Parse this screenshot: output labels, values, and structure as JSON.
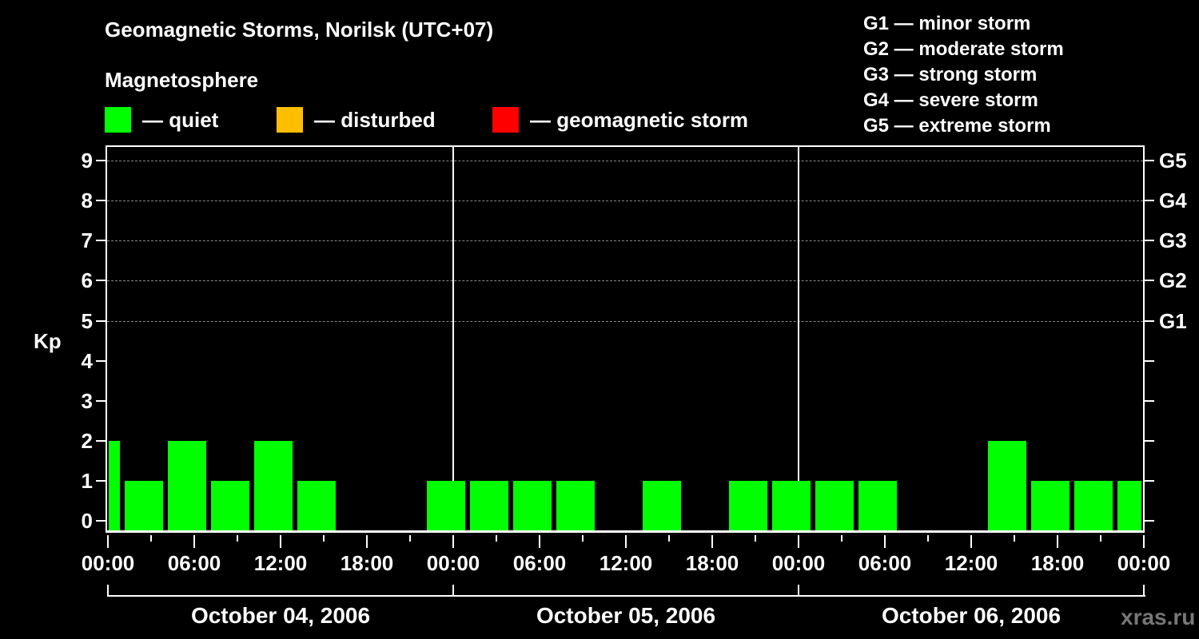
{
  "chart_data": {
    "type": "bar",
    "title": "Geomagnetic Storms, Norilsk (UTC+07)",
    "subtitle": "Magnetosphere",
    "xlabel": "",
    "ylabel": "Kp",
    "ylim": [
      0,
      9
    ],
    "yticks": [
      "0",
      "1",
      "2",
      "3",
      "4",
      "5",
      "6",
      "7",
      "8",
      "9"
    ],
    "right_ticks": [
      {
        "kp": 5,
        "label": "G1"
      },
      {
        "kp": 6,
        "label": "G2"
      },
      {
        "kp": 7,
        "label": "G3"
      },
      {
        "kp": 8,
        "label": "G4"
      },
      {
        "kp": 9,
        "label": "G5"
      }
    ],
    "grid": "dashed horizontal at Kp 5-9",
    "xtick_labels": [
      "00:00",
      "06:00",
      "12:00",
      "18:00",
      "00:00",
      "06:00",
      "12:00",
      "18:00",
      "00:00",
      "06:00",
      "12:00",
      "18:00",
      "00:00"
    ],
    "days": [
      "October 04, 2006",
      "October 05, 2006",
      "October 06, 2006"
    ],
    "interval_hours": 3,
    "series": [
      {
        "name": "Kp index",
        "color": "#00ff00",
        "values": [
          2,
          1,
          2,
          1,
          2,
          1,
          0,
          0,
          1,
          1,
          1,
          1,
          0,
          1,
          0,
          1,
          1,
          1,
          1,
          0,
          0,
          2,
          1,
          1,
          1
        ]
      }
    ],
    "legend": [
      {
        "label": "— quiet",
        "color": "#00ff00"
      },
      {
        "label": "— disturbed",
        "color": "#ffbf00"
      },
      {
        "label": "— geomagnetic storm",
        "color": "#ff0000"
      }
    ]
  },
  "header": {
    "title": "Geomagnetic Storms, Norilsk (UTC+07)",
    "subtitle": "Magnetosphere"
  },
  "legend": {
    "quiet": "— quiet",
    "disturbed": "— disturbed",
    "storm": "— geomagnetic storm",
    "colors": {
      "quiet": "#00ff00",
      "disturbed": "#ffbf00",
      "storm": "#ff0000"
    }
  },
  "storm_scale": [
    "G1 — minor storm",
    "G2 — moderate storm",
    "G3 — strong storm",
    "G4 — severe storm",
    "G5 — extreme storm"
  ],
  "axis": {
    "ylabel": "Kp",
    "y": [
      "0",
      "1",
      "2",
      "3",
      "4",
      "5",
      "6",
      "7",
      "8",
      "9"
    ],
    "g": [
      "G1",
      "G2",
      "G3",
      "G4",
      "G5"
    ],
    "x": [
      "00:00",
      "06:00",
      "12:00",
      "18:00",
      "00:00",
      "06:00",
      "12:00",
      "18:00",
      "00:00",
      "06:00",
      "12:00",
      "18:00",
      "00:00"
    ],
    "days": [
      "October 04, 2006",
      "October 05, 2006",
      "October 06, 2006"
    ]
  },
  "watermark": "xras.ru"
}
